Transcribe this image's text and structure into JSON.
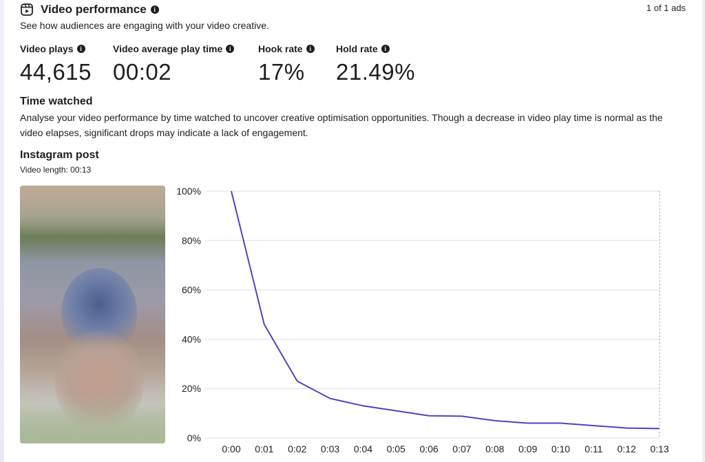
{
  "header": {
    "title": "Video performance",
    "subtitle": "See how audiences are engaging with your video creative.",
    "ads_count": "1 of 1 ads"
  },
  "metrics": [
    {
      "label": "Video plays",
      "value": "44,615"
    },
    {
      "label": "Video average play time",
      "value": "00:02"
    },
    {
      "label": "Hook rate",
      "value": "17%"
    },
    {
      "label": "Hold rate",
      "value": "21.49%"
    }
  ],
  "time_watched": {
    "title": "Time watched",
    "description": "Analyse your video performance by time watched to uncover creative optimisation opportunities. Though a decrease in video play time is normal as the video elapses, significant drops may indicate a lack of engagement."
  },
  "post": {
    "title": "Instagram post",
    "video_length": "Video length: 00:13"
  },
  "colors": {
    "line": "#5b3cc4",
    "grid": "#dddfe2"
  },
  "chart_data": {
    "type": "line",
    "categories": [
      "0:00",
      "0:01",
      "0:02",
      "0:03",
      "0:04",
      "0:05",
      "0:06",
      "0:07",
      "0:08",
      "0:09",
      "0:10",
      "0:11",
      "0:12",
      "0:13"
    ],
    "series": [
      {
        "values": [
          100,
          46,
          23,
          16,
          13,
          11,
          9,
          8.8,
          7,
          6,
          6,
          5,
          4,
          3.8
        ]
      }
    ],
    "y_ticks": [
      "0%",
      "20%",
      "40%",
      "60%",
      "80%",
      "100%"
    ],
    "ylim": [
      0,
      100
    ],
    "grid": true
  }
}
